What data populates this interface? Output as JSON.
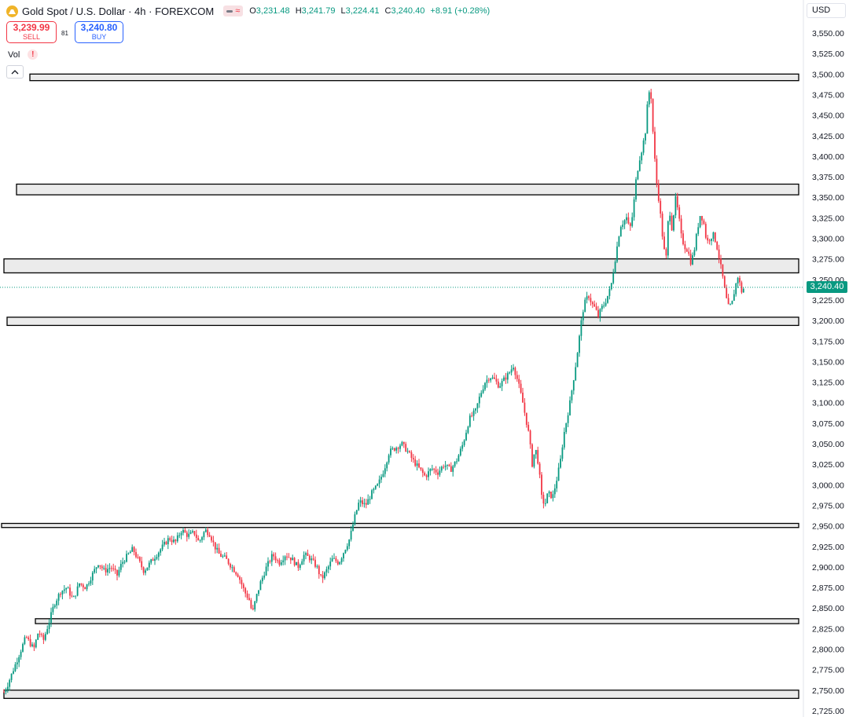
{
  "header": {
    "symbol": "Gold Spot / U.S. Dollar · 4h · FOREXCOM",
    "o_label": "O",
    "o_value": "3,231.48",
    "h_label": "H",
    "h_value": "3,241.79",
    "l_label": "L",
    "l_value": "3,224.41",
    "c_label": "C",
    "c_value": "3,240.40",
    "change": "+8.91 (+0.28%)",
    "pill_symbol": "≈"
  },
  "trade": {
    "sell_price": "3,239.99",
    "sell_label": "SELL",
    "buy_price": "3,240.80",
    "buy_label": "BUY",
    "spread": "81"
  },
  "vol_label": "Vol",
  "warning_mark": "!",
  "currency": "USD",
  "last_price_tag": "3,240.40",
  "colors": {
    "up": "#089981",
    "down": "#f23645",
    "zone_fill": "#ebebeb",
    "zone_stroke": "#000000",
    "axis_text": "#131722"
  },
  "chart_data": {
    "type": "candlestick",
    "timeframe": "4h",
    "ylim": [
      2720,
      3570
    ],
    "y_ticks": [
      "3,550.00",
      "3,525.00",
      "3,500.00",
      "3,475.00",
      "3,450.00",
      "3,425.00",
      "3,400.00",
      "3,375.00",
      "3,350.00",
      "3,325.00",
      "3,300.00",
      "3,275.00",
      "3,250.00",
      "3,225.00",
      "3,200.00",
      "3,175.00",
      "3,150.00",
      "3,125.00",
      "3,100.00",
      "3,075.00",
      "3,050.00",
      "3,025.00",
      "3,000.00",
      "2,975.00",
      "2,950.00",
      "2,925.00",
      "2,900.00",
      "2,875.00",
      "2,850.00",
      "2,825.00",
      "2,800.00",
      "2,775.00",
      "2,750.00",
      "2,725.00"
    ],
    "y_tick_values": [
      3550,
      3525,
      3500,
      3475,
      3450,
      3425,
      3400,
      3375,
      3350,
      3325,
      3300,
      3275,
      3250,
      3225,
      3200,
      3175,
      3150,
      3125,
      3100,
      3075,
      3050,
      3025,
      3000,
      2975,
      2950,
      2925,
      2900,
      2875,
      2850,
      2825,
      2800,
      2775,
      2750,
      2725
    ],
    "last_price": 3240.4,
    "price_path": [
      [
        0,
        2748
      ],
      [
        4,
        2755
      ],
      [
        10,
        2770
      ],
      [
        20,
        2795
      ],
      [
        28,
        2815
      ],
      [
        38,
        2800
      ],
      [
        44,
        2822
      ],
      [
        50,
        2810
      ],
      [
        58,
        2835
      ],
      [
        64,
        2855
      ],
      [
        72,
        2870
      ],
      [
        80,
        2875
      ],
      [
        88,
        2860
      ],
      [
        96,
        2880
      ],
      [
        104,
        2875
      ],
      [
        112,
        2890
      ],
      [
        120,
        2905
      ],
      [
        128,
        2895
      ],
      [
        136,
        2900
      ],
      [
        144,
        2890
      ],
      [
        150,
        2905
      ],
      [
        158,
        2915
      ],
      [
        164,
        2922
      ],
      [
        170,
        2910
      ],
      [
        178,
        2895
      ],
      [
        186,
        2905
      ],
      [
        194,
        2915
      ],
      [
        202,
        2925
      ],
      [
        210,
        2935
      ],
      [
        218,
        2930
      ],
      [
        226,
        2945
      ],
      [
        234,
        2938
      ],
      [
        242,
        2942
      ],
      [
        248,
        2930
      ],
      [
        256,
        2945
      ],
      [
        262,
        2940
      ],
      [
        268,
        2925
      ],
      [
        274,
        2915
      ],
      [
        282,
        2910
      ],
      [
        290,
        2900
      ],
      [
        298,
        2890
      ],
      [
        306,
        2870
      ],
      [
        312,
        2860
      ],
      [
        316,
        2843
      ],
      [
        320,
        2860
      ],
      [
        326,
        2880
      ],
      [
        334,
        2900
      ],
      [
        342,
        2915
      ],
      [
        350,
        2905
      ],
      [
        358,
        2915
      ],
      [
        366,
        2910
      ],
      [
        374,
        2900
      ],
      [
        382,
        2915
      ],
      [
        390,
        2910
      ],
      [
        398,
        2900
      ],
      [
        404,
        2885
      ],
      [
        410,
        2895
      ],
      [
        418,
        2910
      ],
      [
        426,
        2905
      ],
      [
        432,
        2918
      ],
      [
        440,
        2935
      ],
      [
        446,
        2960
      ],
      [
        452,
        2980
      ],
      [
        460,
        2975
      ],
      [
        468,
        2990
      ],
      [
        476,
        3000
      ],
      [
        484,
        3020
      ],
      [
        490,
        3040
      ],
      [
        498,
        3045
      ],
      [
        506,
        3050
      ],
      [
        514,
        3040
      ],
      [
        520,
        3030
      ],
      [
        528,
        3020
      ],
      [
        536,
        3010
      ],
      [
        544,
        3020
      ],
      [
        552,
        3015
      ],
      [
        560,
        3025
      ],
      [
        568,
        3018
      ],
      [
        576,
        3030
      ],
      [
        584,
        3050
      ],
      [
        592,
        3080
      ],
      [
        600,
        3090
      ],
      [
        606,
        3110
      ],
      [
        612,
        3125
      ],
      [
        618,
        3132
      ],
      [
        624,
        3128
      ],
      [
        630,
        3120
      ],
      [
        636,
        3128
      ],
      [
        642,
        3135
      ],
      [
        648,
        3145
      ],
      [
        654,
        3125
      ],
      [
        660,
        3100
      ],
      [
        664,
        3080
      ],
      [
        668,
        3060
      ],
      [
        672,
        3025
      ],
      [
        676,
        3045
      ],
      [
        680,
        3025
      ],
      [
        684,
        2985
      ],
      [
        688,
        2975
      ],
      [
        692,
        2990
      ],
      [
        698,
        2985
      ],
      [
        704,
        3010
      ],
      [
        708,
        3030
      ],
      [
        712,
        3060
      ],
      [
        716,
        3080
      ],
      [
        720,
        3100
      ],
      [
        724,
        3125
      ],
      [
        728,
        3150
      ],
      [
        732,
        3180
      ],
      [
        736,
        3210
      ],
      [
        740,
        3225
      ],
      [
        744,
        3230
      ],
      [
        748,
        3220
      ],
      [
        752,
        3215
      ],
      [
        756,
        3205
      ],
      [
        760,
        3215
      ],
      [
        764,
        3220
      ],
      [
        768,
        3230
      ],
      [
        772,
        3240
      ],
      [
        776,
        3265
      ],
      [
        780,
        3290
      ],
      [
        784,
        3315
      ],
      [
        788,
        3320
      ],
      [
        792,
        3325
      ],
      [
        796,
        3310
      ],
      [
        800,
        3330
      ],
      [
        804,
        3370
      ],
      [
        808,
        3395
      ],
      [
        812,
        3410
      ],
      [
        816,
        3430
      ],
      [
        820,
        3480
      ],
      [
        824,
        3470
      ],
      [
        826,
        3420
      ],
      [
        830,
        3370
      ],
      [
        834,
        3340
      ],
      [
        838,
        3300
      ],
      [
        842,
        3270
      ],
      [
        846,
        3340
      ],
      [
        850,
        3310
      ],
      [
        854,
        3350
      ],
      [
        858,
        3330
      ],
      [
        862,
        3300
      ],
      [
        866,
        3290
      ],
      [
        870,
        3285
      ],
      [
        874,
        3270
      ],
      [
        878,
        3285
      ],
      [
        882,
        3310
      ],
      [
        886,
        3330
      ],
      [
        890,
        3320
      ],
      [
        894,
        3295
      ],
      [
        898,
        3300
      ],
      [
        902,
        3305
      ],
      [
        906,
        3295
      ],
      [
        910,
        3275
      ],
      [
        914,
        3255
      ],
      [
        918,
        3230
      ],
      [
        922,
        3215
      ],
      [
        926,
        3220
      ],
      [
        930,
        3240
      ],
      [
        934,
        3255
      ],
      [
        938,
        3235
      ],
      [
        942,
        3240
      ]
    ]
  },
  "zones": [
    {
      "label": "zone-3500",
      "top": 3500,
      "bottom": 3492,
      "x_start": 0.036
    },
    {
      "label": "zone-3360",
      "top": 3366,
      "bottom": 3353,
      "x_start": 0.019
    },
    {
      "label": "zone-3270",
      "top": 3275,
      "bottom": 3258,
      "x_start": 0.003
    },
    {
      "label": "zone-3200",
      "top": 3204,
      "bottom": 3194,
      "x_start": 0.007
    },
    {
      "label": "zone-2950",
      "top": 2953,
      "bottom": 2948,
      "x_start": 0.0
    },
    {
      "label": "zone-2835",
      "top": 2837,
      "bottom": 2831,
      "x_start": 0.043
    },
    {
      "label": "zone-2745",
      "top": 2750,
      "bottom": 2740,
      "x_start": 0.003
    }
  ]
}
